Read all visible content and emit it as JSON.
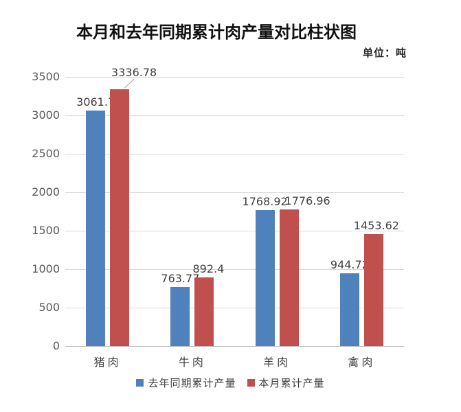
{
  "chart": {
    "title": "本月和去年同期累计肉产量对比柱状图",
    "unit_label": "单位：吨"
  },
  "chart_data": {
    "type": "bar",
    "title": "本月和去年同期累计肉产量对比柱状图",
    "unit": "吨",
    "categories": [
      "猪肉",
      "牛肉",
      "羊肉",
      "禽肉"
    ],
    "series": [
      {
        "name": "去年同期累计产量",
        "color": "#4F81BD",
        "values": [
          3061.7,
          763.77,
          1768.92,
          944.72
        ],
        "labels": [
          "3061.7",
          "763.77",
          "1768.92",
          "944.72"
        ]
      },
      {
        "name": "本月累计产量",
        "color": "#C0504D",
        "values": [
          3336.78,
          892.4,
          1776.96,
          1453.62
        ],
        "labels": [
          "3336.78",
          "892.4",
          "1776.96",
          "1453.62"
        ]
      }
    ],
    "ylim": [
      0,
      3500
    ],
    "ytick_step": 500,
    "yticks": [
      "0",
      "500",
      "1000",
      "1500",
      "2000",
      "2500",
      "3000",
      "3500"
    ],
    "grid": true,
    "legend_position": "bottom"
  },
  "colors": {
    "series_blue": "#4F81BD",
    "series_red": "#C0504D",
    "gridline": "#D9D9D9",
    "axis_line": "#BFBFBF",
    "axis_label": "#595959",
    "data_label": "#404040",
    "category_label": "#3F3F3F",
    "legend_text": "#3F3F3F",
    "leader_line": "#A6A6A6"
  }
}
